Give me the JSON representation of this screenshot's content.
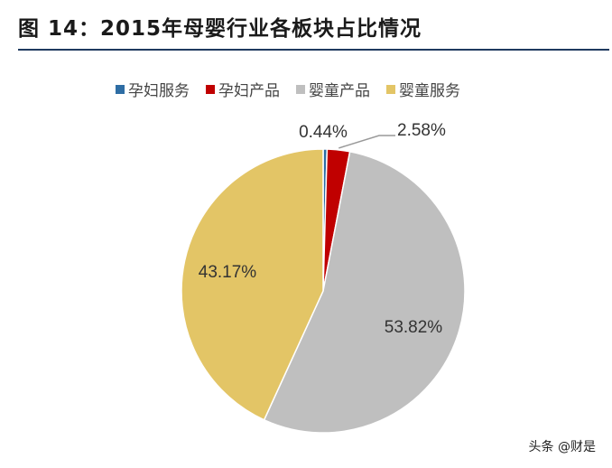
{
  "title": "图 14：2015年母婴行业各板块占比情况",
  "watermark": "头条 @财是",
  "chart_data": {
    "type": "pie",
    "title": "2015年母婴行业各板块占比情况",
    "legend_position": "top",
    "slices": [
      {
        "name": "孕妇服务",
        "value": 0.44,
        "label": "0.44%",
        "color": "#2e6da4"
      },
      {
        "name": "孕妇产品",
        "value": 2.58,
        "label": "2.58%",
        "color": "#c00000"
      },
      {
        "name": "婴童产品",
        "value": 53.82,
        "label": "53.82%",
        "color": "#bfbfbf"
      },
      {
        "name": "婴童服务",
        "value": 43.17,
        "label": "43.17%",
        "color": "#e3c566"
      }
    ]
  }
}
